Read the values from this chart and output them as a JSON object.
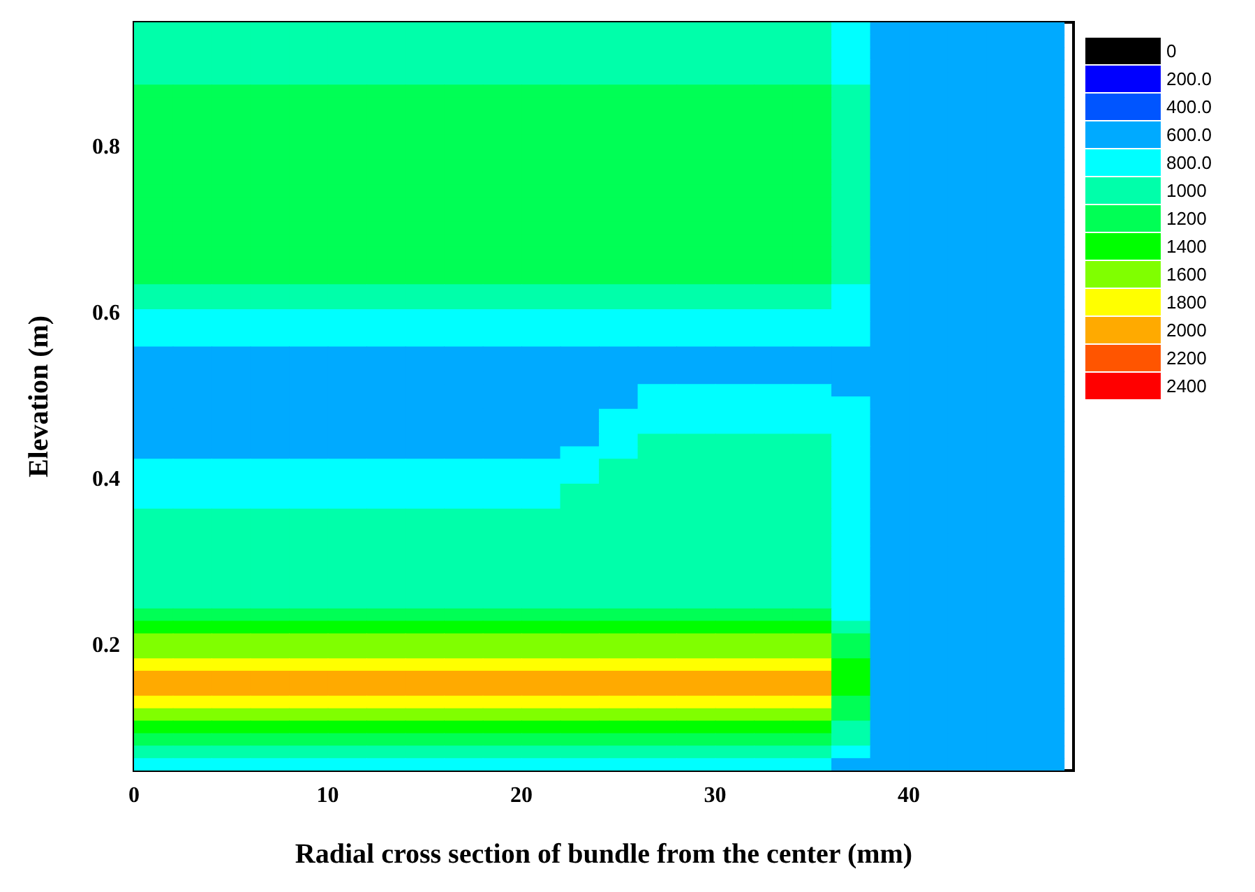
{
  "chart_data": {
    "type": "heatmap",
    "xlabel": "Radial cross section of bundle from the center (mm)",
    "ylabel": "Elevation (m)",
    "xlim": [
      0,
      48.5
    ],
    "xticks": [
      0,
      10,
      20,
      30,
      40
    ],
    "ylim": [
      0.05,
      0.95
    ],
    "yticks": [
      0.2,
      0.4,
      0.6,
      0.8
    ],
    "grid": false,
    "cticks": [
      0,
      {
        "value": 200,
        "label": "200.0"
      },
      {
        "value": 400,
        "label": "400.0"
      },
      {
        "value": 600,
        "label": "600.0"
      },
      {
        "value": 800,
        "label": "800.0"
      },
      1000,
      1200,
      1400,
      1600,
      1800,
      2000,
      2200,
      2400
    ],
    "colors": [
      "#000000",
      "#0000ff",
      "#0055ff",
      "#00aaff",
      "#00ffff",
      "#00ffaa",
      "#00ff55",
      "#00ff00",
      "#80ff00",
      "#ffff00",
      "#ffaa00",
      "#ff5500",
      "#ff0000"
    ],
    "x": [
      1,
      3,
      5,
      7,
      9,
      11,
      13,
      15,
      17,
      19,
      21,
      23,
      25,
      27,
      29,
      31,
      33,
      35,
      37,
      39,
      41,
      43,
      45,
      47
    ],
    "y": [
      0.9425,
      0.9275,
      0.9125,
      0.8975,
      0.8825,
      0.8675,
      0.8525,
      0.8375,
      0.8225,
      0.8075,
      0.7925,
      0.7775,
      0.7625,
      0.7475,
      0.7325,
      0.7175,
      0.7025,
      0.6875,
      0.6725,
      0.6575,
      0.6425,
      0.6275,
      0.6125,
      0.5975,
      0.5825,
      0.5675,
      0.5525,
      0.5375,
      0.5225,
      0.5075,
      0.4925,
      0.4775,
      0.4625,
      0.4475,
      0.4325,
      0.4175,
      0.4025,
      0.3875,
      0.3725,
      0.3575,
      0.3425,
      0.3275,
      0.3125,
      0.2975,
      0.2825,
      0.2675,
      0.2525,
      0.2375,
      0.2225,
      0.2075,
      0.1925,
      0.1775,
      0.1625,
      0.1475,
      0.1325,
      0.1175,
      0.1025,
      0.0875,
      0.0725,
      0.0575
    ],
    "cells": [
      [
        900,
        900,
        900,
        900,
        900,
        900,
        900,
        900,
        900,
        900,
        900,
        900,
        900,
        900,
        900,
        900,
        900,
        900,
        700,
        500,
        500,
        500,
        500,
        500
      ],
      [
        900,
        900,
        900,
        900,
        900,
        900,
        900,
        900,
        900,
        900,
        900,
        900,
        900,
        900,
        900,
        900,
        900,
        900,
        700,
        500,
        500,
        500,
        500,
        500
      ],
      [
        900,
        900,
        900,
        900,
        900,
        900,
        900,
        900,
        900,
        900,
        900,
        900,
        900,
        900,
        900,
        900,
        900,
        900,
        700,
        500,
        500,
        500,
        500,
        500
      ],
      [
        900,
        900,
        900,
        900,
        900,
        900,
        900,
        900,
        900,
        900,
        900,
        900,
        900,
        900,
        900,
        900,
        900,
        900,
        700,
        500,
        500,
        500,
        500,
        500
      ],
      [
        900,
        900,
        900,
        900,
        900,
        900,
        900,
        900,
        900,
        900,
        900,
        900,
        900,
        900,
        900,
        900,
        900,
        900,
        700,
        500,
        500,
        500,
        500,
        500
      ],
      [
        1100,
        1100,
        1100,
        1100,
        1100,
        1100,
        1100,
        1100,
        1100,
        1100,
        1100,
        1100,
        1100,
        1100,
        1100,
        1100,
        1100,
        1100,
        900,
        500,
        500,
        500,
        500,
        500
      ],
      [
        1100,
        1100,
        1100,
        1100,
        1100,
        1100,
        1100,
        1100,
        1100,
        1100,
        1100,
        1100,
        1100,
        1100,
        1100,
        1100,
        1100,
        1100,
        900,
        500,
        500,
        500,
        500,
        500
      ],
      [
        1100,
        1100,
        1100,
        1100,
        1100,
        1100,
        1100,
        1100,
        1100,
        1100,
        1100,
        1100,
        1100,
        1100,
        1100,
        1100,
        1100,
        1100,
        900,
        500,
        500,
        500,
        500,
        500
      ],
      [
        1100,
        1100,
        1100,
        1100,
        1100,
        1100,
        1100,
        1100,
        1100,
        1100,
        1100,
        1100,
        1100,
        1100,
        1100,
        1100,
        1100,
        1100,
        900,
        500,
        500,
        500,
        500,
        500
      ],
      [
        1100,
        1100,
        1100,
        1100,
        1100,
        1100,
        1100,
        1100,
        1100,
        1100,
        1100,
        1100,
        1100,
        1100,
        1100,
        1100,
        1100,
        1100,
        900,
        500,
        500,
        500,
        500,
        500
      ],
      [
        1100,
        1100,
        1100,
        1100,
        1100,
        1100,
        1100,
        1100,
        1100,
        1100,
        1100,
        1100,
        1100,
        1100,
        1100,
        1100,
        1100,
        1100,
        900,
        500,
        500,
        500,
        500,
        500
      ],
      [
        1100,
        1100,
        1100,
        1100,
        1100,
        1100,
        1100,
        1100,
        1100,
        1100,
        1100,
        1100,
        1100,
        1100,
        1100,
        1100,
        1100,
        1100,
        900,
        500,
        500,
        500,
        500,
        500
      ],
      [
        1100,
        1100,
        1100,
        1100,
        1100,
        1100,
        1100,
        1100,
        1100,
        1100,
        1100,
        1100,
        1100,
        1100,
        1100,
        1100,
        1100,
        1100,
        900,
        500,
        500,
        500,
        500,
        500
      ],
      [
        1100,
        1100,
        1100,
        1100,
        1100,
        1100,
        1100,
        1100,
        1100,
        1100,
        1100,
        1100,
        1100,
        1100,
        1100,
        1100,
        1100,
        1100,
        900,
        500,
        500,
        500,
        500,
        500
      ],
      [
        1100,
        1100,
        1100,
        1100,
        1100,
        1100,
        1100,
        1100,
        1100,
        1100,
        1100,
        1100,
        1100,
        1100,
        1100,
        1100,
        1100,
        1100,
        900,
        500,
        500,
        500,
        500,
        500
      ],
      [
        1100,
        1100,
        1100,
        1100,
        1100,
        1100,
        1100,
        1100,
        1100,
        1100,
        1100,
        1100,
        1100,
        1100,
        1100,
        1100,
        1100,
        1100,
        900,
        500,
        500,
        500,
        500,
        500
      ],
      [
        1100,
        1100,
        1100,
        1100,
        1100,
        1100,
        1100,
        1100,
        1100,
        1100,
        1100,
        1100,
        1100,
        1100,
        1100,
        1100,
        1100,
        1100,
        900,
        500,
        500,
        500,
        500,
        500
      ],
      [
        1100,
        1100,
        1100,
        1100,
        1100,
        1100,
        1100,
        1100,
        1100,
        1100,
        1100,
        1100,
        1100,
        1100,
        1100,
        1100,
        1100,
        1100,
        900,
        500,
        500,
        500,
        500,
        500
      ],
      [
        1100,
        1100,
        1100,
        1100,
        1100,
        1100,
        1100,
        1100,
        1100,
        1100,
        1100,
        1100,
        1100,
        1100,
        1100,
        1100,
        1100,
        1100,
        900,
        500,
        500,
        500,
        500,
        500
      ],
      [
        1100,
        1100,
        1100,
        1100,
        1100,
        1100,
        1100,
        1100,
        1100,
        1100,
        1100,
        1100,
        1100,
        1100,
        1100,
        1100,
        1100,
        1100,
        900,
        500,
        500,
        500,
        500,
        500
      ],
      [
        1100,
        1100,
        1100,
        1100,
        1100,
        1100,
        1100,
        1100,
        1100,
        1100,
        1100,
        1100,
        1100,
        1100,
        1100,
        1100,
        1100,
        1100,
        900,
        500,
        500,
        500,
        500,
        500
      ],
      [
        900,
        900,
        900,
        900,
        900,
        900,
        900,
        900,
        900,
        900,
        900,
        900,
        900,
        900,
        900,
        900,
        900,
        900,
        700,
        500,
        500,
        500,
        500,
        500
      ],
      [
        900,
        900,
        900,
        900,
        900,
        900,
        900,
        900,
        900,
        900,
        900,
        900,
        900,
        900,
        900,
        900,
        900,
        900,
        700,
        500,
        500,
        500,
        500,
        500
      ],
      [
        700,
        700,
        700,
        700,
        700,
        700,
        700,
        700,
        700,
        700,
        700,
        700,
        700,
        700,
        700,
        700,
        700,
        700,
        700,
        500,
        500,
        500,
        500,
        500
      ],
      [
        700,
        700,
        700,
        700,
        700,
        700,
        700,
        700,
        700,
        700,
        700,
        700,
        700,
        700,
        700,
        700,
        700,
        700,
        700,
        500,
        500,
        500,
        500,
        500
      ],
      [
        700,
        700,
        700,
        700,
        700,
        700,
        700,
        700,
        700,
        700,
        700,
        700,
        700,
        700,
        700,
        700,
        700,
        700,
        700,
        500,
        500,
        500,
        500,
        500
      ],
      [
        500,
        500,
        500,
        500,
        500,
        500,
        500,
        500,
        500,
        500,
        500,
        500,
        500,
        500,
        500,
        500,
        500,
        500,
        500,
        500,
        500,
        500,
        500,
        500
      ],
      [
        500,
        500,
        500,
        500,
        500,
        500,
        500,
        500,
        500,
        500,
        500,
        500,
        500,
        500,
        500,
        500,
        500,
        500,
        500,
        500,
        500,
        500,
        500,
        500
      ],
      [
        500,
        500,
        500,
        500,
        500,
        500,
        500,
        500,
        500,
        500,
        500,
        500,
        500,
        500,
        500,
        500,
        500,
        500,
        500,
        500,
        500,
        500,
        500,
        500
      ],
      [
        500,
        500,
        500,
        500,
        500,
        500,
        500,
        500,
        500,
        500,
        500,
        500,
        500,
        700,
        700,
        700,
        700,
        700,
        500,
        500,
        500,
        500,
        500,
        500
      ],
      [
        500,
        500,
        500,
        500,
        500,
        500,
        500,
        500,
        500,
        500,
        500,
        500,
        500,
        700,
        700,
        700,
        700,
        700,
        700,
        500,
        500,
        500,
        500,
        500
      ],
      [
        500,
        500,
        500,
        500,
        500,
        500,
        500,
        500,
        500,
        500,
        500,
        500,
        700,
        700,
        700,
        700,
        700,
        700,
        700,
        500,
        500,
        500,
        500,
        500
      ],
      [
        500,
        500,
        500,
        500,
        500,
        500,
        500,
        500,
        500,
        500,
        500,
        500,
        700,
        700,
        700,
        700,
        700,
        700,
        700,
        500,
        500,
        500,
        500,
        500
      ],
      [
        500,
        500,
        500,
        500,
        500,
        500,
        500,
        500,
        500,
        500,
        500,
        500,
        700,
        900,
        900,
        900,
        900,
        900,
        700,
        500,
        500,
        500,
        500,
        500
      ],
      [
        500,
        500,
        500,
        500,
        500,
        500,
        500,
        500,
        500,
        500,
        500,
        700,
        700,
        900,
        900,
        900,
        900,
        900,
        700,
        500,
        500,
        500,
        500,
        500
      ],
      [
        700,
        700,
        700,
        700,
        700,
        700,
        700,
        700,
        700,
        700,
        700,
        700,
        900,
        900,
        900,
        900,
        900,
        900,
        700,
        500,
        500,
        500,
        500,
        500
      ],
      [
        700,
        700,
        700,
        700,
        700,
        700,
        700,
        700,
        700,
        700,
        700,
        700,
        900,
        900,
        900,
        900,
        900,
        900,
        700,
        500,
        500,
        500,
        500,
        500
      ],
      [
        700,
        700,
        700,
        700,
        700,
        700,
        700,
        700,
        700,
        700,
        700,
        900,
        900,
        900,
        900,
        900,
        900,
        900,
        700,
        500,
        500,
        500,
        500,
        500
      ],
      [
        700,
        700,
        700,
        700,
        700,
        700,
        700,
        700,
        700,
        700,
        700,
        900,
        900,
        900,
        900,
        900,
        900,
        900,
        700,
        500,
        500,
        500,
        500,
        500
      ],
      [
        900,
        900,
        900,
        900,
        900,
        900,
        900,
        900,
        900,
        900,
        900,
        900,
        900,
        900,
        900,
        900,
        900,
        900,
        700,
        500,
        500,
        500,
        500,
        500
      ],
      [
        900,
        900,
        900,
        900,
        900,
        900,
        900,
        900,
        900,
        900,
        900,
        900,
        900,
        900,
        900,
        900,
        900,
        900,
        700,
        500,
        500,
        500,
        500,
        500
      ],
      [
        900,
        900,
        900,
        900,
        900,
        900,
        900,
        900,
        900,
        900,
        900,
        900,
        900,
        900,
        900,
        900,
        900,
        900,
        700,
        500,
        500,
        500,
        500,
        500
      ],
      [
        900,
        900,
        900,
        900,
        900,
        900,
        900,
        900,
        900,
        900,
        900,
        900,
        900,
        900,
        900,
        900,
        900,
        900,
        700,
        500,
        500,
        500,
        500,
        500
      ],
      [
        900,
        900,
        900,
        900,
        900,
        900,
        900,
        900,
        900,
        900,
        900,
        900,
        900,
        900,
        900,
        900,
        900,
        900,
        700,
        500,
        500,
        500,
        500,
        500
      ],
      [
        900,
        900,
        900,
        900,
        900,
        900,
        900,
        900,
        900,
        900,
        900,
        900,
        900,
        900,
        900,
        900,
        900,
        900,
        700,
        500,
        500,
        500,
        500,
        500
      ],
      [
        900,
        900,
        900,
        900,
        900,
        900,
        900,
        900,
        900,
        900,
        900,
        900,
        900,
        900,
        900,
        900,
        900,
        900,
        700,
        500,
        500,
        500,
        500,
        500
      ],
      [
        900,
        900,
        900,
        900,
        900,
        900,
        900,
        900,
        900,
        900,
        900,
        900,
        900,
        900,
        900,
        900,
        900,
        900,
        700,
        500,
        500,
        500,
        500,
        500
      ],
      [
        1100,
        1100,
        1100,
        1100,
        1100,
        1100,
        1100,
        1100,
        1100,
        1100,
        1100,
        1100,
        1100,
        1100,
        1100,
        1100,
        1100,
        1100,
        700,
        500,
        500,
        500,
        500,
        500
      ],
      [
        1300,
        1300,
        1300,
        1300,
        1300,
        1300,
        1300,
        1300,
        1300,
        1300,
        1300,
        1300,
        1300,
        1300,
        1300,
        1300,
        1300,
        1300,
        900,
        500,
        500,
        500,
        500,
        500
      ],
      [
        1500,
        1500,
        1500,
        1500,
        1500,
        1500,
        1500,
        1500,
        1500,
        1500,
        1500,
        1500,
        1500,
        1500,
        1500,
        1500,
        1500,
        1500,
        1100,
        500,
        500,
        500,
        500,
        500
      ],
      [
        1500,
        1500,
        1500,
        1500,
        1500,
        1500,
        1500,
        1500,
        1500,
        1500,
        1500,
        1500,
        1500,
        1500,
        1500,
        1500,
        1500,
        1500,
        1100,
        500,
        500,
        500,
        500,
        500
      ],
      [
        1700,
        1700,
        1700,
        1700,
        1700,
        1700,
        1700,
        1700,
        1700,
        1700,
        1700,
        1700,
        1700,
        1700,
        1700,
        1700,
        1700,
        1700,
        1300,
        500,
        500,
        500,
        500,
        500
      ],
      [
        1900,
        1900,
        1900,
        1900,
        1900,
        1900,
        1900,
        1900,
        1900,
        1900,
        1900,
        1900,
        1900,
        1900,
        1900,
        1900,
        1900,
        1900,
        1300,
        500,
        500,
        500,
        500,
        500
      ],
      [
        1900,
        1900,
        1900,
        1900,
        1900,
        1900,
        1900,
        1900,
        1900,
        1900,
        1900,
        1900,
        1900,
        1900,
        1900,
        1900,
        1900,
        1900,
        1300,
        500,
        500,
        500,
        500,
        500
      ],
      [
        1700,
        1700,
        1700,
        1700,
        1700,
        1700,
        1700,
        1700,
        1700,
        1700,
        1700,
        1700,
        1700,
        1700,
        1700,
        1700,
        1700,
        1700,
        1100,
        500,
        500,
        500,
        500,
        500
      ],
      [
        1500,
        1500,
        1500,
        1500,
        1500,
        1500,
        1500,
        1500,
        1500,
        1500,
        1500,
        1500,
        1500,
        1500,
        1500,
        1500,
        1500,
        1500,
        1100,
        500,
        500,
        500,
        500,
        500
      ],
      [
        1300,
        1300,
        1300,
        1300,
        1300,
        1300,
        1300,
        1300,
        1300,
        1300,
        1300,
        1300,
        1300,
        1300,
        1300,
        1300,
        1300,
        1300,
        900,
        500,
        500,
        500,
        500,
        500
      ],
      [
        1100,
        1100,
        1100,
        1100,
        1100,
        1100,
        1100,
        1100,
        1100,
        1100,
        1100,
        1100,
        1100,
        1100,
        1100,
        1100,
        1100,
        1100,
        900,
        500,
        500,
        500,
        500,
        500
      ],
      [
        900,
        900,
        900,
        900,
        900,
        900,
        900,
        900,
        900,
        900,
        900,
        900,
        900,
        900,
        900,
        900,
        900,
        900,
        700,
        500,
        500,
        500,
        500,
        500
      ],
      [
        700,
        700,
        700,
        700,
        700,
        700,
        700,
        700,
        700,
        700,
        700,
        700,
        700,
        700,
        700,
        700,
        700,
        700,
        500,
        500,
        500,
        500,
        500,
        500
      ]
    ]
  }
}
